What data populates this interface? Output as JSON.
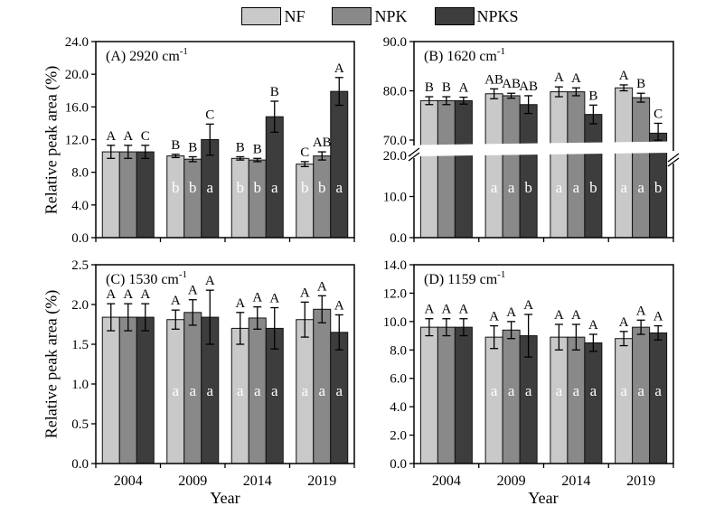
{
  "figure": {
    "xlabel": "Year",
    "ylabel": "Relative peak area (%)",
    "background": "#ffffff",
    "text_color": "#000000",
    "legend": {
      "position": "top-center",
      "items": [
        {
          "label": "NF",
          "color": "#c9c9c9"
        },
        {
          "label": "NPK",
          "color": "#898989"
        },
        {
          "label": "NPKS",
          "color": "#3d3d3d"
        }
      ]
    }
  },
  "chart_data": {
    "type": "bar",
    "grid": false,
    "error_bars": true,
    "categories": [
      "2004",
      "2009",
      "2014",
      "2019"
    ],
    "panels": [
      {
        "id": "A",
        "title": "(A) 2920 cm",
        "title_sup": "-1",
        "ylim": [
          0,
          24
        ],
        "yticks": [
          {
            "v": 0,
            "label": "0.0"
          },
          {
            "v": 4,
            "label": "4.0"
          },
          {
            "v": 8,
            "label": "8.0"
          },
          {
            "v": 12,
            "label": "12.0"
          },
          {
            "v": 16,
            "label": "16.0"
          },
          {
            "v": 20,
            "label": "20.0"
          },
          {
            "v": 24,
            "label": "24.0"
          }
        ],
        "series": [
          {
            "name": "NF",
            "color": "#c9c9c9",
            "values": [
              10.5,
              10.0,
              9.7,
              9.0
            ],
            "errors": [
              0.8,
              0.2,
              0.2,
              0.3
            ],
            "upper_letters": [
              "A",
              "B",
              "B",
              "C"
            ],
            "lower_letters": [
              "",
              "b",
              "b",
              "b"
            ]
          },
          {
            "name": "NPK",
            "color": "#898989",
            "values": [
              10.5,
              9.6,
              9.5,
              10.0
            ],
            "errors": [
              0.8,
              0.3,
              0.2,
              0.5
            ],
            "upper_letters": [
              "A",
              "B",
              "B",
              "AB"
            ],
            "lower_letters": [
              "",
              "b",
              "b",
              "b"
            ]
          },
          {
            "name": "NPKS",
            "color": "#3d3d3d",
            "values": [
              10.5,
              12.0,
              14.8,
              17.9
            ],
            "errors": [
              0.8,
              1.9,
              1.9,
              1.7
            ],
            "upper_letters": [
              "C",
              "C",
              "B",
              "A"
            ],
            "lower_letters": [
              "",
              "a",
              "a",
              "a"
            ]
          }
        ]
      },
      {
        "id": "B",
        "title": "(B) 1620 cm",
        "title_sup": "-1",
        "axis_break": {
          "lower": [
            0,
            20
          ],
          "upper": [
            70,
            90
          ]
        },
        "yticks": [
          {
            "v": 0,
            "label": "0.0"
          },
          {
            "v": 10,
            "label": "10.0"
          },
          {
            "v": 20,
            "label": "20.0"
          },
          {
            "v": 70,
            "label": "70.0"
          },
          {
            "v": 80,
            "label": "80.0"
          },
          {
            "v": 90,
            "label": "90.0"
          }
        ],
        "series": [
          {
            "name": "NF",
            "color": "#c9c9c9",
            "values": [
              78.0,
              79.4,
              79.8,
              80.6
            ],
            "errors": [
              0.8,
              1.0,
              1.0,
              0.6
            ],
            "upper_letters": [
              "B",
              "AB",
              "A",
              "A"
            ],
            "lower_letters": [
              "",
              "a",
              "a",
              "a"
            ]
          },
          {
            "name": "NPK",
            "color": "#898989",
            "values": [
              78.0,
              79.0,
              79.8,
              78.6
            ],
            "errors": [
              0.8,
              0.5,
              0.8,
              0.9
            ],
            "upper_letters": [
              "B",
              "AB",
              "A",
              "B"
            ],
            "lower_letters": [
              "",
              "a",
              "a",
              "a"
            ]
          },
          {
            "name": "NPKS",
            "color": "#3d3d3d",
            "values": [
              78.0,
              77.2,
              75.2,
              71.4
            ],
            "errors": [
              0.7,
              1.8,
              1.9,
              2.0
            ],
            "upper_letters": [
              "A",
              "AB",
              "B",
              "C"
            ],
            "lower_letters": [
              "",
              "b",
              "b",
              "b"
            ]
          }
        ]
      },
      {
        "id": "C",
        "title": "(C) 1530 cm",
        "title_sup": "-1",
        "ylim": [
          0,
          2.5
        ],
        "yticks": [
          {
            "v": 0,
            "label": "0.0"
          },
          {
            "v": 0.5,
            "label": "0.5"
          },
          {
            "v": 1,
            "label": "1.0"
          },
          {
            "v": 1.5,
            "label": "1.5"
          },
          {
            "v": 2,
            "label": "2.0"
          },
          {
            "v": 2.5,
            "label": "2.5"
          }
        ],
        "series": [
          {
            "name": "NF",
            "color": "#c9c9c9",
            "values": [
              1.84,
              1.81,
              1.7,
              1.81
            ],
            "errors": [
              0.17,
              0.12,
              0.2,
              0.22
            ],
            "upper_letters": [
              "A",
              "A",
              "A",
              "A"
            ],
            "lower_letters": [
              "",
              "a",
              "a",
              "a"
            ]
          },
          {
            "name": "NPK",
            "color": "#898989",
            "values": [
              1.84,
              1.9,
              1.83,
              1.94
            ],
            "errors": [
              0.17,
              0.16,
              0.14,
              0.17
            ],
            "upper_letters": [
              "A",
              "A",
              "A",
              "A"
            ],
            "lower_letters": [
              "",
              "a",
              "a",
              "a"
            ]
          },
          {
            "name": "NPKS",
            "color": "#3d3d3d",
            "values": [
              1.84,
              1.84,
              1.7,
              1.65
            ],
            "errors": [
              0.17,
              0.34,
              0.26,
              0.22
            ],
            "upper_letters": [
              "A",
              "A",
              "A",
              "A"
            ],
            "lower_letters": [
              "",
              "a",
              "a",
              "a"
            ]
          }
        ]
      },
      {
        "id": "D",
        "title": "(D) 1159 cm",
        "title_sup": "-1",
        "ylim": [
          0,
          14
        ],
        "yticks": [
          {
            "v": 0,
            "label": "0.0"
          },
          {
            "v": 2,
            "label": "2.0"
          },
          {
            "v": 4,
            "label": "4.0"
          },
          {
            "v": 6,
            "label": "6.0"
          },
          {
            "v": 8,
            "label": "8.0"
          },
          {
            "v": 10,
            "label": "10.0"
          },
          {
            "v": 12,
            "label": "12.0"
          },
          {
            "v": 14,
            "label": "14.0"
          }
        ],
        "series": [
          {
            "name": "NF",
            "color": "#c9c9c9",
            "values": [
              9.6,
              8.9,
              8.9,
              8.8
            ],
            "errors": [
              0.6,
              0.8,
              0.9,
              0.5
            ],
            "upper_letters": [
              "A",
              "A",
              "A",
              "A"
            ],
            "lower_letters": [
              "",
              "a",
              "a",
              "a"
            ]
          },
          {
            "name": "NPK",
            "color": "#898989",
            "values": [
              9.6,
              9.4,
              8.9,
              9.6
            ],
            "errors": [
              0.6,
              0.6,
              0.9,
              0.5
            ],
            "upper_letters": [
              "A",
              "A",
              "A",
              "A"
            ],
            "lower_letters": [
              "",
              "a",
              "a",
              "a"
            ]
          },
          {
            "name": "NPKS",
            "color": "#3d3d3d",
            "values": [
              9.6,
              9.0,
              8.5,
              9.2
            ],
            "errors": [
              0.6,
              1.5,
              0.6,
              0.5
            ],
            "upper_letters": [
              "A",
              "A",
              "A",
              "A"
            ],
            "lower_letters": [
              "",
              "a",
              "a",
              "a"
            ]
          }
        ]
      }
    ]
  }
}
